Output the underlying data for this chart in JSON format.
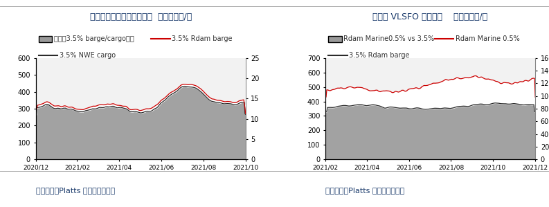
{
  "chart1": {
    "title": "西北欧高硫燃料油现货价差  单位：美元/吨",
    "legend1_label": "西北欧3.5% barge/cargo价差",
    "legend2_label": "3.5% Rdam barge",
    "legend3_label": "3.5% NWE cargo",
    "ylim_left": [
      0,
      600
    ],
    "ylim_right": [
      0,
      25
    ],
    "yticks_left": [
      0,
      100,
      200,
      300,
      400,
      500,
      600
    ],
    "yticks_right": [
      0,
      5,
      10,
      15,
      20,
      25
    ],
    "xtick_labels": [
      "2020/12",
      "2021/02",
      "2021/04",
      "2021/06",
      "2021/08",
      "2021/10"
    ],
    "footer": "数据来源：Platts 华泰期货研究院",
    "fill_color": "#999999",
    "line1_color": "#cc0000",
    "line2_color": "#2a2a2a",
    "bg_color": "#f2f2f2",
    "title_color": "#1a3a6b"
  },
  "chart2": {
    "title": "西北欧 VLSFO 现货价格    单位：美元/吨",
    "legend1_label": "Rdam Marine0.5% vs 3.5%",
    "legend2_label": "Rdam Marine 0.5%",
    "legend3_label": "3.5% Rdam barge",
    "ylim_left": [
      0,
      700
    ],
    "ylim_right": [
      0,
      160
    ],
    "yticks_left": [
      0,
      100,
      200,
      300,
      400,
      500,
      600,
      700
    ],
    "yticks_right": [
      0,
      20,
      40,
      60,
      80,
      100,
      120,
      140,
      160
    ],
    "xtick_labels": [
      "2021/02",
      "2021/04",
      "2021/06",
      "2021/08",
      "2021/10",
      "2021/12"
    ],
    "footer": "数据来源：Platts 华泰期货研究院",
    "fill_color": "#999999",
    "line1_color": "#cc0000",
    "line2_color": "#2a2a2a",
    "bg_color": "#f2f2f2",
    "title_color": "#1a3a6b"
  },
  "footer_color": "#1a3a6b",
  "separator_color": "#aaaaaa"
}
